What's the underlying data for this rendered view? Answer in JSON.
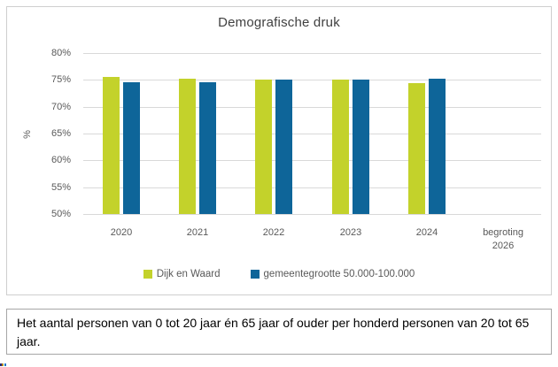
{
  "chart_data": {
    "type": "bar",
    "title": "Demografische druk",
    "categories": [
      "2020",
      "2021",
      "2022",
      "2023",
      "2024",
      "begroting 2026"
    ],
    "series": [
      {
        "name": "Dijk en Waard",
        "color": "#c3d22b",
        "values": [
          75.6,
          75.3,
          75.0,
          75.0,
          74.4,
          null
        ]
      },
      {
        "name": "gemeentegrootte 50.000-100.000",
        "color": "#0e6599",
        "values": [
          74.5,
          74.5,
          75.0,
          75.1,
          75.2,
          null
        ]
      }
    ],
    "xlabel": "",
    "ylabel": "%",
    "ylim": [
      50,
      80
    ],
    "ytick_step": 5,
    "ytick_labels": [
      "80%",
      "75%",
      "70%",
      "65%",
      "60%",
      "55%",
      "50%"
    ],
    "ytick_format": "percent",
    "grid": true,
    "legend_position": "bottom",
    "colors": {
      "title_text": "#404040",
      "axis_text": "#595959",
      "gridline": "#d9d9d9",
      "chart_border": "#cfcfcf"
    }
  },
  "footnote": {
    "text": "Het aantal personen van 0 tot 20 jaar én 65 jaar of ouder per honderd personen van 20 tot 65 jaar."
  }
}
